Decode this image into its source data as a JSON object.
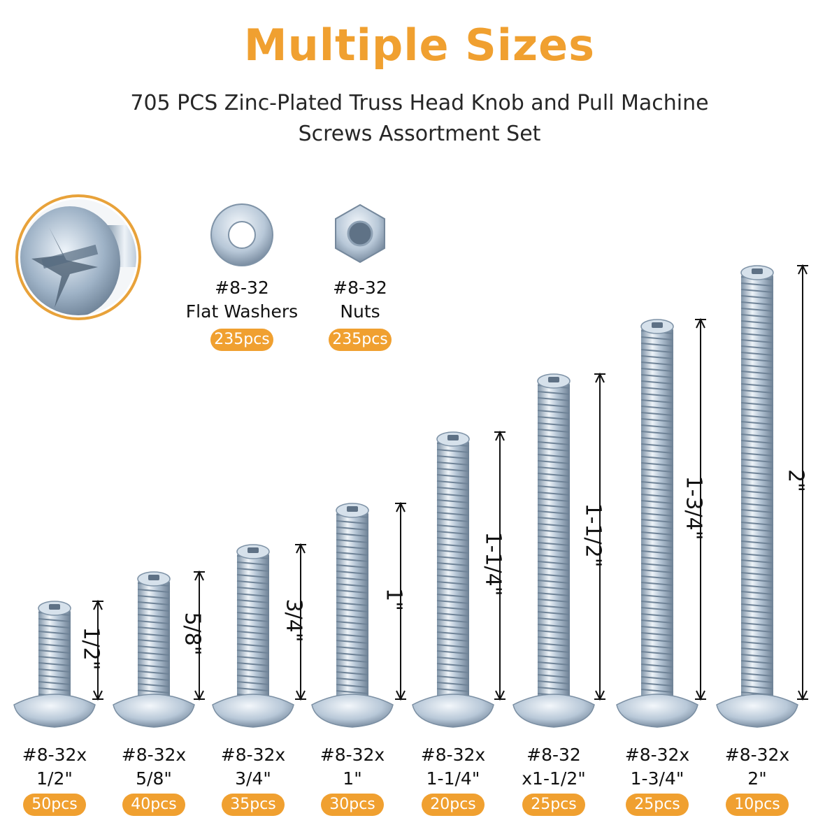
{
  "header": {
    "title": "Multiple Sizes",
    "subtitle_line1": "705 PCS Zinc-Plated Truss Head Knob and Pull Machine",
    "subtitle_line2": "Screws Assortment Set"
  },
  "accessories": [
    {
      "line1": "#8-32",
      "line2": "Flat Washers",
      "qty": "235pcs",
      "icon": "washer-icon"
    },
    {
      "line1": "#8-32",
      "line2": "Nuts",
      "qty": "235pcs",
      "icon": "nut-icon"
    }
  ],
  "screws": [
    {
      "line1": "#8-32x",
      "line2": "1/2\"",
      "qty": "50pcs",
      "dimension": "1/2\""
    },
    {
      "line1": "#8-32x",
      "line2": "5/8\"",
      "qty": "40pcs",
      "dimension": "5/8\""
    },
    {
      "line1": "#8-32x",
      "line2": "3/4\"",
      "qty": "35pcs",
      "dimension": "3/4\""
    },
    {
      "line1": "#8-32x",
      "line2": "1\"",
      "qty": "30pcs",
      "dimension": "1\""
    },
    {
      "line1": "#8-32x",
      "line2": "1-1/4\"",
      "qty": "20pcs",
      "dimension": "1-1/4\""
    },
    {
      "line1": "#8-32",
      "line2": "x1-1/2\"",
      "qty": "25pcs",
      "dimension": "1-1/2\""
    },
    {
      "line1": "#8-32x",
      "line2": "1-3/4\"",
      "qty": "25pcs",
      "dimension": "1-3/4\""
    },
    {
      "line1": "#8-32x",
      "line2": "2\"",
      "qty": "10pcs",
      "dimension": "2\""
    }
  ],
  "colors": {
    "accent": "#f0a030",
    "title": "#f0a030",
    "metal": "#c8d6e4"
  },
  "icons": [
    "screw-head-closeup-icon",
    "washer-icon",
    "nut-icon",
    "screw-icon",
    "dimension-arrow-icon"
  ]
}
